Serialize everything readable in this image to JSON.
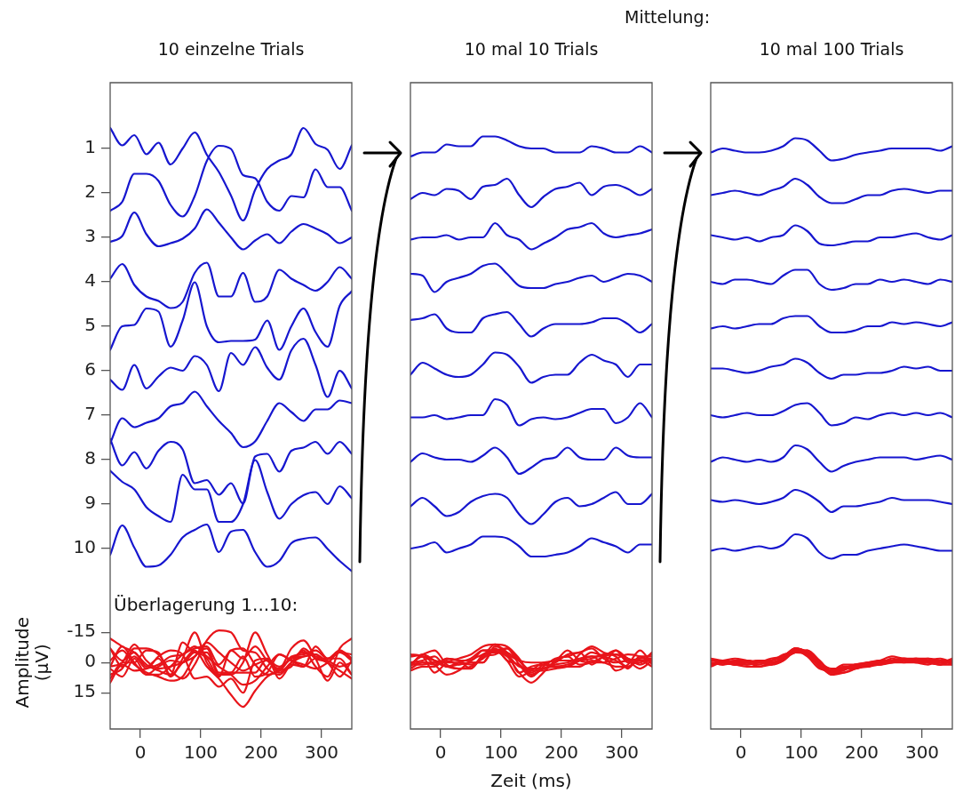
{
  "chart_data": [
    {
      "type": "line",
      "title": "10 einzelne Trials",
      "y2label": "Amplitude (µV)",
      "annotations": [
        "Überlagerung 1...10:"
      ],
      "x": [
        -50,
        -30,
        -10,
        10,
        30,
        50,
        70,
        90,
        110,
        130,
        150,
        170,
        190,
        210,
        230,
        250,
        270,
        290,
        310,
        330,
        350
      ],
      "xlim": [
        -50,
        350
      ],
      "xticks": [
        0,
        100,
        200,
        300
      ],
      "ylim": [
        14.06,
        -0.48
      ],
      "yticks": [
        1,
        2,
        3,
        4,
        5,
        6,
        7,
        8,
        9,
        10
      ],
      "y2lim": [
        33,
        -288
      ],
      "y2ticks": [
        -15,
        0,
        15
      ],
      "series": [
        {
          "color": "#1616cf",
          "values": [
            0.54,
            0.93,
            0.7,
            1.13,
            0.87,
            1.36,
            1,
            0.64,
            1.14,
            1.53,
            2.06,
            2.62,
            1.93,
            1.46,
            1.27,
            1.13,
            0.54,
            0.9,
            1.03,
            1.46,
            0.93
          ]
        },
        {
          "color": "#1616cf",
          "values": [
            2.4,
            2.2,
            1.57,
            1.57,
            1.73,
            2.27,
            2.53,
            2.07,
            1.28,
            0.94,
            1.01,
            1.6,
            1.67,
            2.2,
            2.4,
            2.07,
            2.1,
            1.47,
            1.87,
            1.87,
            2.4
          ]
        },
        {
          "color": "#1616cf",
          "values": [
            3.1,
            2.97,
            2.44,
            2.93,
            3.2,
            3.13,
            3.03,
            2.8,
            2.37,
            2.67,
            3,
            3.27,
            3.07,
            2.93,
            3.13,
            2.87,
            2.7,
            2.8,
            2.93,
            3.13,
            3
          ]
        },
        {
          "color": "#1616cf",
          "values": [
            3.93,
            3.6,
            4.07,
            4.33,
            4.43,
            4.59,
            4.45,
            3.8,
            3.57,
            4.33,
            4.33,
            3.8,
            4.45,
            4.33,
            3.73,
            3.93,
            4.07,
            4.2,
            4,
            3.67,
            3.93
          ]
        },
        {
          "color": "#1616cf",
          "values": [
            5.53,
            5,
            4.97,
            4.6,
            4.67,
            5.46,
            4.87,
            4.01,
            5,
            5.36,
            5.33,
            5.33,
            5.3,
            4.87,
            5.53,
            5,
            4.6,
            5.13,
            5.46,
            4.54,
            4.21
          ]
        },
        {
          "color": "#1616cf",
          "values": [
            6.2,
            6.43,
            5.87,
            6.4,
            6.13,
            5.93,
            6,
            5.67,
            5.87,
            6.46,
            5.6,
            5.87,
            5.47,
            5.93,
            6.2,
            5.54,
            5.28,
            5.87,
            6.59,
            6,
            6.4
          ]
        },
        {
          "color": "#1616cf",
          "values": [
            7.63,
            7.07,
            7.27,
            7.17,
            7.07,
            6.8,
            6.73,
            6.47,
            6.8,
            7.13,
            7.4,
            7.72,
            7.59,
            7.13,
            6.73,
            6.93,
            7.13,
            6.87,
            6.87,
            6.67,
            6.73
          ]
        },
        {
          "color": "#1616cf",
          "values": [
            7.54,
            8.13,
            7.83,
            8.2,
            7.8,
            7.6,
            7.77,
            8.53,
            8.46,
            8.79,
            8.53,
            8.99,
            7.93,
            7.87,
            8.27,
            7.8,
            7.73,
            7.6,
            7.87,
            7.6,
            7.87
          ]
        },
        {
          "color": "#1616cf",
          "values": [
            8.25,
            8.5,
            8.67,
            9.07,
            9.27,
            9.4,
            8.34,
            8.67,
            8.67,
            9.4,
            9.4,
            9,
            8.01,
            8.73,
            9.33,
            9,
            8.8,
            8.73,
            9,
            8.6,
            8.87
          ]
        },
        {
          "color": "#1616cf",
          "values": [
            10.14,
            9.48,
            9.98,
            10.41,
            10.38,
            10.14,
            9.75,
            9.58,
            9.46,
            10.08,
            9.62,
            9.58,
            10.08,
            10.41,
            10.28,
            9.88,
            9.78,
            9.75,
            10.01,
            10.28,
            10.51
          ]
        },
        {
          "color": "#e8141a",
          "axis": "y2",
          "values": [
            -7,
            -1,
            -5,
            2,
            -2,
            6,
            0,
            -6,
            2,
            8,
            16,
            22,
            14,
            7,
            4,
            2,
            -7,
            -2,
            0,
            7,
            -1
          ]
        },
        {
          "color": "#e8141a",
          "axis": "y2",
          "values": [
            6,
            3,
            -7,
            -7,
            -4,
            4,
            8,
            1,
            -11,
            -16,
            -15,
            -6,
            -5,
            3,
            6,
            1,
            2,
            -8,
            -2,
            -2,
            6
          ]
        },
        {
          "color": "#e8141a",
          "axis": "y2",
          "values": [
            2,
            0,
            -9,
            -1,
            3,
            2,
            0,
            -3,
            -10,
            -5,
            0,
            4,
            1,
            -1,
            2,
            -2,
            -5,
            -3,
            -1,
            2,
            0
          ]
        },
        {
          "color": "#e8141a",
          "axis": "y2",
          "values": [
            -1,
            -6,
            1,
            5,
            7,
            9,
            7,
            -3,
            -7,
            5,
            5,
            -3,
            7,
            5,
            -4,
            -1,
            1,
            3,
            0,
            -5,
            -1
          ]
        },
        {
          "color": "#e8141a",
          "axis": "y2",
          "values": [
            8,
            0,
            0,
            -6,
            -5,
            7,
            -2,
            -15,
            0,
            6,
            5,
            5,
            5,
            -2,
            8,
            0,
            -6,
            2,
            7,
            -7,
            -12
          ]
        },
        {
          "color": "#e8141a",
          "axis": "y2",
          "values": [
            3,
            7,
            -2,
            6,
            2,
            -1,
            0,
            -5,
            -2,
            7,
            -6,
            -2,
            -8,
            -1,
            3,
            -7,
            -11,
            -2,
            9,
            0,
            6
          ]
        },
        {
          "color": "#e8141a",
          "axis": "y2",
          "values": [
            10,
            1,
            4,
            3,
            1,
            -3,
            -4,
            -8,
            -3,
            2,
            6,
            11,
            9,
            2,
            -4,
            -1,
            2,
            -2,
            -2,
            -5,
            -4
          ]
        },
        {
          "color": "#e8141a",
          "axis": "y2",
          "values": [
            -7,
            2,
            -3,
            3,
            -3,
            -6,
            -4,
            8,
            7,
            12,
            8,
            15,
            -1,
            -2,
            4,
            -3,
            -4,
            -6,
            -2,
            -6,
            -2
          ]
        },
        {
          "color": "#e8141a",
          "axis": "y2",
          "values": [
            -12,
            -8,
            -5,
            1,
            4,
            6,
            -10,
            -5,
            -5,
            6,
            6,
            0,
            -15,
            -4,
            5,
            0,
            -3,
            -4,
            0,
            -6,
            -2
          ]
        },
        {
          "color": "#e8141a",
          "axis": "y2",
          "values": [
            2,
            -8,
            0,
            6,
            6,
            2,
            -4,
            -7,
            -8,
            1,
            -6,
            -7,
            1,
            6,
            4,
            -2,
            -3,
            -4,
            0,
            4,
            8
          ]
        }
      ]
    },
    {
      "type": "line",
      "title": "10 mal 10 Trials",
      "xlabel": "Zeit (ms)",
      "tick_labels": "x",
      "x": [
        -50,
        -30,
        -10,
        10,
        30,
        50,
        70,
        90,
        110,
        130,
        150,
        170,
        190,
        210,
        230,
        250,
        270,
        290,
        310,
        330,
        350
      ],
      "xlim": [
        -50,
        350
      ],
      "xticks": [
        0,
        100,
        200,
        300
      ],
      "ylim": [
        14.06,
        -0.48
      ],
      "y2lim": [
        33,
        -288
      ],
      "series": [
        {
          "color": "#1616cf",
          "values": [
            1.18,
            1.09,
            1.09,
            0.91,
            0.95,
            0.95,
            0.73,
            0.73,
            0.82,
            0.95,
            1,
            1,
            1.09,
            1.09,
            1.09,
            0.95,
            1,
            1.09,
            1.09,
            0.95,
            1.09
          ]
        },
        {
          "color": "#1616cf",
          "values": [
            2.14,
            2,
            2.05,
            1.91,
            1.95,
            2.14,
            1.86,
            1.82,
            1.68,
            2.05,
            2.32,
            2.09,
            1.91,
            1.86,
            1.77,
            2.05,
            1.86,
            1.82,
            1.91,
            2.05,
            1.91
          ]
        },
        {
          "color": "#1616cf",
          "values": [
            3.05,
            3,
            3,
            2.95,
            3.05,
            3,
            3,
            2.68,
            2.95,
            3.05,
            3.27,
            3.14,
            3,
            2.82,
            2.77,
            2.68,
            2.91,
            3,
            2.95,
            2.91,
            2.82
          ]
        },
        {
          "color": "#1616cf",
          "values": [
            3.82,
            3.86,
            4.23,
            4,
            3.91,
            3.82,
            3.64,
            3.59,
            3.82,
            4.09,
            4.14,
            4.14,
            4.05,
            4,
            3.91,
            3.86,
            4,
            3.91,
            3.82,
            3.86,
            4
          ]
        },
        {
          "color": "#1616cf",
          "values": [
            4.86,
            4.82,
            4.73,
            5.05,
            5.14,
            5.14,
            4.82,
            4.73,
            4.68,
            4.95,
            5.23,
            5.05,
            4.95,
            4.95,
            4.95,
            4.91,
            4.82,
            4.82,
            4.95,
            5.14,
            4.95
          ]
        },
        {
          "color": "#1616cf",
          "values": [
            6.09,
            5.82,
            5.95,
            6.09,
            6.14,
            6.09,
            5.86,
            5.59,
            5.64,
            5.91,
            6.27,
            6.14,
            6.09,
            6.09,
            5.82,
            5.64,
            5.77,
            5.86,
            6.14,
            5.86,
            5.86
          ]
        },
        {
          "color": "#1616cf",
          "values": [
            7.05,
            7.05,
            7,
            7.09,
            7.05,
            7,
            7,
            6.64,
            6.77,
            7.23,
            7.09,
            7.05,
            7.09,
            7.05,
            6.95,
            6.86,
            6.86,
            7.18,
            7.05,
            6.73,
            7.05
          ]
        },
        {
          "color": "#1616cf",
          "values": [
            8.05,
            7.86,
            7.95,
            8,
            8,
            8.05,
            7.91,
            7.73,
            7.95,
            8.32,
            8.18,
            8,
            7.95,
            7.73,
            7.95,
            8,
            8,
            7.73,
            7.91,
            7.95,
            7.95
          ]
        },
        {
          "color": "#1616cf",
          "values": [
            9.05,
            8.86,
            9.05,
            9.27,
            9.18,
            8.95,
            8.82,
            8.77,
            8.86,
            9.23,
            9.45,
            9.23,
            8.95,
            8.86,
            9.05,
            9,
            8.86,
            8.73,
            9,
            9,
            8.77
          ]
        },
        {
          "color": "#1616cf",
          "values": [
            10,
            9.95,
            9.86,
            10.09,
            10,
            9.91,
            9.73,
            9.73,
            9.77,
            9.95,
            10.18,
            10.18,
            10.14,
            10.09,
            9.95,
            9.77,
            9.86,
            9.95,
            10.09,
            9.91,
            9.91
          ]
        },
        {
          "color": "#e8141a",
          "axis": "y2",
          "values": [
            4,
            2,
            2,
            -2,
            -1,
            -1,
            -6,
            -6,
            -4,
            -1,
            0,
            0,
            2,
            2,
            2,
            -1,
            0,
            2,
            2,
            -1,
            2
          ]
        },
        {
          "color": "#e8141a",
          "axis": "y2",
          "values": [
            3,
            0,
            1,
            -2,
            -1,
            3,
            -3,
            -4,
            -7,
            1,
            7,
            2,
            -2,
            -3,
            -5,
            1,
            -3,
            -4,
            -2,
            1,
            -2
          ]
        },
        {
          "color": "#e8141a",
          "axis": "y2",
          "values": [
            1,
            0,
            0,
            -1,
            1,
            0,
            0,
            -7,
            -1,
            1,
            6,
            3,
            0,
            -4,
            -5,
            -7,
            -2,
            0,
            -1,
            -2,
            -4
          ]
        },
        {
          "color": "#e8141a",
          "axis": "y2",
          "values": [
            -4,
            -3,
            5,
            0,
            -2,
            -4,
            -8,
            -9,
            -4,
            2,
            3,
            3,
            1,
            0,
            -2,
            -3,
            0,
            -2,
            -4,
            -3,
            0
          ]
        },
        {
          "color": "#e8141a",
          "axis": "y2",
          "values": [
            -3,
            -4,
            -6,
            1,
            3,
            3,
            -4,
            -6,
            -7,
            -1,
            5,
            1,
            -1,
            -1,
            -1,
            -2,
            -4,
            -4,
            -1,
            3,
            -1
          ]
        },
        {
          "color": "#e8141a",
          "axis": "y2",
          "values": [
            2,
            -4,
            -1,
            2,
            3,
            2,
            -3,
            -9,
            -8,
            -2,
            6,
            3,
            2,
            2,
            -4,
            -8,
            -5,
            -3,
            3,
            -3,
            -3
          ]
        },
        {
          "color": "#e8141a",
          "axis": "y2",
          "values": [
            1,
            1,
            0,
            2,
            1,
            0,
            0,
            -8,
            -5,
            5,
            2,
            1,
            2,
            1,
            -1,
            -3,
            -3,
            4,
            1,
            -6,
            1
          ]
        },
        {
          "color": "#e8141a",
          "axis": "y2",
          "values": [
            1,
            -3,
            -1,
            0,
            0,
            1,
            -2,
            -6,
            -1,
            7,
            4,
            0,
            -1,
            -6,
            -1,
            0,
            0,
            -6,
            -2,
            -1,
            -1
          ]
        },
        {
          "color": "#e8141a",
          "axis": "y2",
          "values": [
            1,
            -3,
            1,
            6,
            4,
            -1,
            -4,
            -5,
            -3,
            5,
            10,
            5,
            -1,
            -3,
            1,
            0,
            -3,
            -6,
            0,
            0,
            -5
          ]
        },
        {
          "color": "#e8141a",
          "axis": "y2",
          "values": [
            0,
            -1,
            -3,
            2,
            0,
            -2,
            -6,
            -6,
            -5,
            -1,
            4,
            4,
            3,
            2,
            -1,
            -5,
            -3,
            -1,
            2,
            -2,
            -2
          ]
        }
      ]
    },
    {
      "type": "line",
      "title": "10 mal 100 Trials",
      "annotations": [
        "Mittelung:"
      ],
      "tick_labels": "x",
      "x": [
        -50,
        -30,
        -10,
        10,
        30,
        50,
        70,
        90,
        110,
        130,
        150,
        170,
        190,
        210,
        230,
        250,
        270,
        290,
        310,
        330,
        350
      ],
      "xlim": [
        -50,
        350
      ],
      "xticks": [
        0,
        100,
        200,
        300
      ],
      "ylim": [
        14.06,
        -0.48
      ],
      "y2lim": [
        33,
        -288
      ],
      "series": [
        {
          "color": "#1616cf",
          "values": [
            1.09,
            1,
            1.05,
            1.09,
            1.09,
            1.05,
            0.95,
            0.77,
            0.82,
            1.05,
            1.27,
            1.23,
            1.14,
            1.09,
            1.05,
            1,
            1,
            1,
            1,
            1.05,
            0.95
          ]
        },
        {
          "color": "#1616cf",
          "values": [
            2.05,
            2,
            1.95,
            2,
            2.05,
            1.95,
            1.86,
            1.68,
            1.82,
            2.09,
            2.23,
            2.23,
            2.14,
            2.05,
            2.05,
            1.95,
            1.91,
            1.95,
            2,
            1.95,
            1.95
          ]
        },
        {
          "color": "#1616cf",
          "values": [
            2.95,
            3,
            3.05,
            3,
            3.09,
            3,
            2.95,
            2.73,
            2.86,
            3.14,
            3.18,
            3.14,
            3.09,
            3.09,
            3,
            3,
            2.95,
            2.91,
            3,
            3.05,
            2.95
          ]
        },
        {
          "color": "#1616cf",
          "values": [
            4,
            4.05,
            3.95,
            3.95,
            4,
            4.05,
            3.86,
            3.73,
            3.73,
            4.05,
            4.18,
            4.14,
            4.05,
            4.05,
            3.95,
            4,
            3.95,
            4,
            4.05,
            3.95,
            4
          ]
        },
        {
          "color": "#1616cf",
          "values": [
            5.05,
            5,
            5.05,
            5,
            4.95,
            4.95,
            4.82,
            4.77,
            4.77,
            5,
            5.14,
            5.14,
            5.09,
            5,
            5,
            4.91,
            4.95,
            4.91,
            4.95,
            5,
            4.91
          ]
        },
        {
          "color": "#1616cf",
          "values": [
            5.95,
            5.95,
            6,
            6.05,
            6,
            5.91,
            5.86,
            5.73,
            5.82,
            6.05,
            6.18,
            6.09,
            6.09,
            6.05,
            6.05,
            6,
            5.91,
            5.95,
            5.91,
            6,
            6
          ]
        },
        {
          "color": "#1616cf",
          "values": [
            7,
            7.05,
            7,
            6.95,
            7,
            7,
            6.91,
            6.77,
            6.73,
            6.95,
            7.23,
            7.18,
            7.05,
            7.09,
            7,
            6.95,
            7,
            6.95,
            7,
            6.95,
            7.05
          ]
        },
        {
          "color": "#1616cf",
          "values": [
            8.05,
            7.95,
            8,
            8.05,
            8,
            8.05,
            7.95,
            7.68,
            7.77,
            8.05,
            8.27,
            8.14,
            8.05,
            8,
            7.95,
            7.95,
            7.95,
            8,
            7.95,
            7.91,
            8
          ]
        },
        {
          "color": "#1616cf",
          "values": [
            8.91,
            8.95,
            8.91,
            8.95,
            9,
            8.95,
            8.86,
            8.68,
            8.77,
            8.95,
            9.18,
            9.05,
            9.05,
            9,
            8.95,
            8.86,
            8.91,
            8.91,
            8.91,
            8.95,
            9
          ]
        },
        {
          "color": "#1616cf",
          "values": [
            10.05,
            10,
            10.05,
            10,
            9.95,
            10,
            9.91,
            9.68,
            9.77,
            10.09,
            10.23,
            10.14,
            10.14,
            10.05,
            10,
            9.95,
            9.91,
            9.95,
            10,
            10.05,
            10.05
          ]
        },
        {
          "color": "#e8141a",
          "axis": "y2",
          "values": [
            2,
            0,
            1,
            2,
            2,
            1,
            -1,
            -5,
            -4,
            1,
            6,
            5,
            3,
            2,
            1,
            0,
            0,
            0,
            0,
            1,
            -1
          ]
        },
        {
          "color": "#e8141a",
          "axis": "y2",
          "values": [
            1,
            0,
            -1,
            0,
            1,
            -1,
            -3,
            -7,
            -4,
            2,
            5,
            5,
            3,
            1,
            1,
            -1,
            -2,
            -1,
            0,
            -1,
            -1
          ]
        },
        {
          "color": "#e8141a",
          "axis": "y2",
          "values": [
            -1,
            0,
            1,
            0,
            2,
            0,
            -1,
            -6,
            -3,
            3,
            4,
            3,
            2,
            2,
            0,
            0,
            -1,
            -2,
            0,
            1,
            -1
          ]
        },
        {
          "color": "#e8141a",
          "axis": "y2",
          "values": [
            0,
            1,
            -1,
            -1,
            0,
            1,
            -3,
            -6,
            -6,
            1,
            4,
            3,
            1,
            1,
            -1,
            0,
            -1,
            0,
            1,
            -1,
            0
          ]
        },
        {
          "color": "#e8141a",
          "axis": "y2",
          "values": [
            1,
            0,
            1,
            0,
            -1,
            -1,
            -4,
            -5,
            -5,
            0,
            3,
            3,
            2,
            0,
            0,
            -2,
            -1,
            -2,
            -1,
            0,
            -2
          ]
        },
        {
          "color": "#e8141a",
          "axis": "y2",
          "values": [
            -1,
            -1,
            0,
            1,
            0,
            -2,
            -3,
            -6,
            -4,
            1,
            4,
            2,
            2,
            1,
            1,
            0,
            -2,
            -1,
            -2,
            0,
            0
          ]
        },
        {
          "color": "#e8141a",
          "axis": "y2",
          "values": [
            0,
            1,
            0,
            -1,
            0,
            0,
            -2,
            -5,
            -6,
            -1,
            5,
            4,
            1,
            2,
            0,
            -1,
            0,
            -1,
            0,
            -1,
            1
          ]
        },
        {
          "color": "#e8141a",
          "axis": "y2",
          "values": [
            1,
            -1,
            0,
            1,
            0,
            1,
            -1,
            -7,
            -5,
            1,
            6,
            3,
            1,
            0,
            -1,
            -1,
            -1,
            0,
            -1,
            -2,
            0
          ]
        },
        {
          "color": "#e8141a",
          "axis": "y2",
          "values": [
            -2,
            -1,
            -2,
            -1,
            0,
            -1,
            -3,
            -7,
            -5,
            -1,
            4,
            1,
            1,
            0,
            -1,
            -3,
            -2,
            -2,
            -2,
            -1,
            0
          ]
        },
        {
          "color": "#e8141a",
          "axis": "y2",
          "values": [
            1,
            0,
            1,
            0,
            -1,
            0,
            -2,
            -7,
            -5,
            2,
            5,
            3,
            3,
            1,
            0,
            -1,
            -2,
            -1,
            0,
            1,
            1
          ]
        }
      ]
    }
  ]
}
